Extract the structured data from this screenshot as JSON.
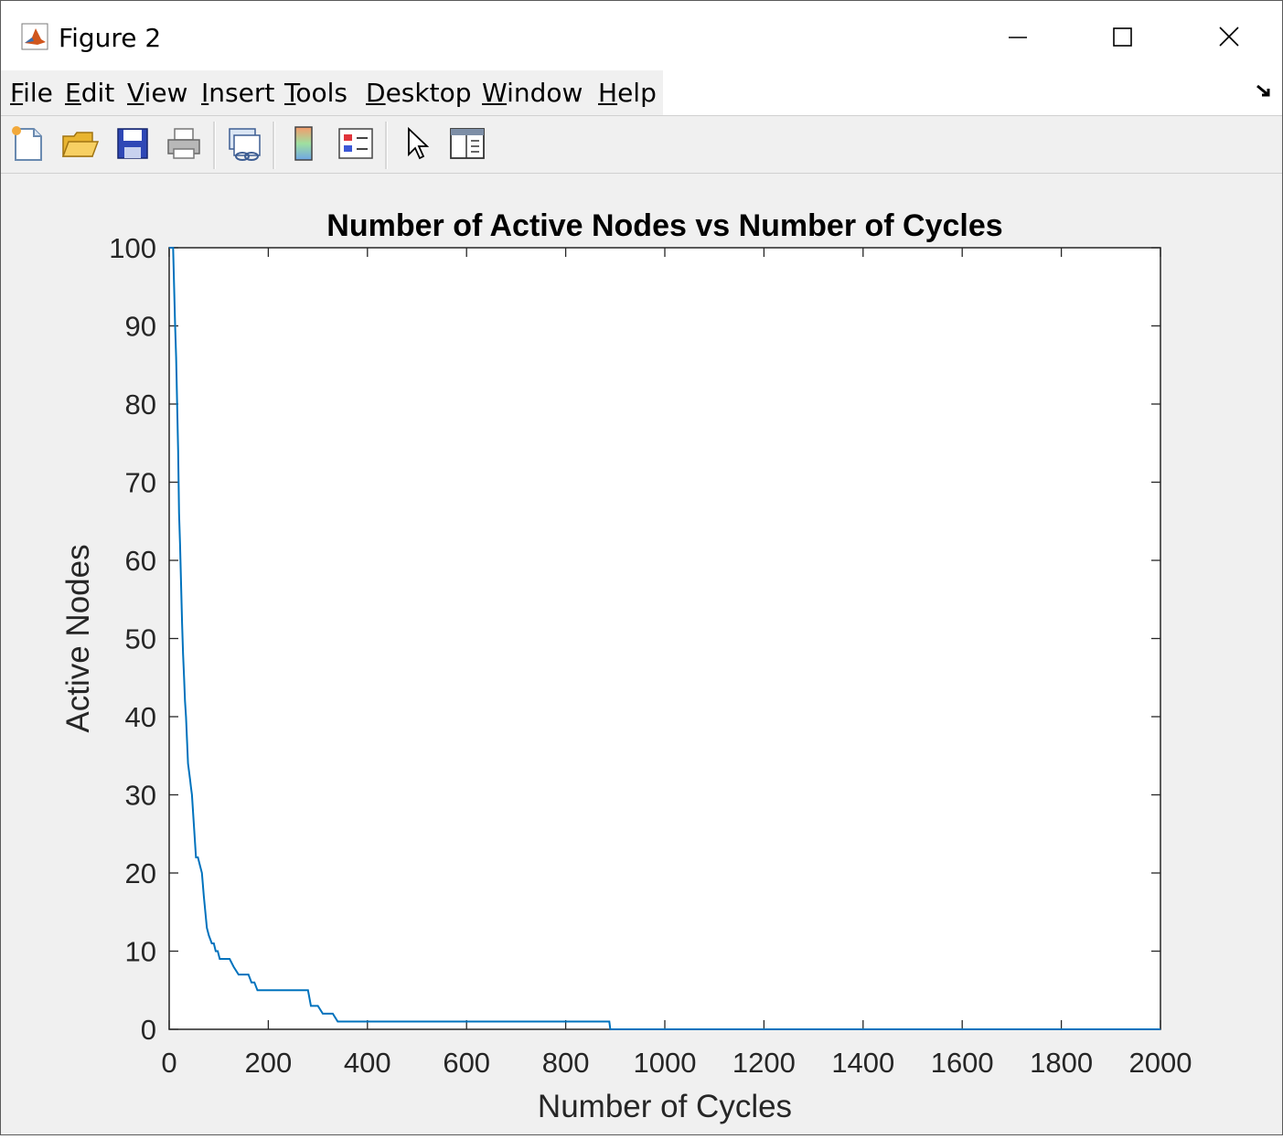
{
  "window": {
    "title": "Figure 2",
    "menu": [
      {
        "label": "File",
        "accel": "F",
        "rest": "ile"
      },
      {
        "label": "Edit",
        "accel": "E",
        "rest": "dit"
      },
      {
        "label": "View",
        "accel": "V",
        "rest": "iew"
      },
      {
        "label": "Insert",
        "accel": "I",
        "rest": "nsert"
      },
      {
        "label": "Tools",
        "accel": "T",
        "rest": "ools"
      },
      {
        "label": "Desktop",
        "accel": "D",
        "rest": "esktop"
      },
      {
        "label": "Window",
        "accel": "W",
        "rest": "indow"
      },
      {
        "label": "Help",
        "accel": "H",
        "rest": "elp"
      }
    ],
    "toolbar_icons": [
      "new-figure-icon",
      "open-file-icon",
      "save-icon",
      "print-icon",
      "link-plot-icon",
      "insert-colorbar-icon",
      "insert-legend-icon",
      "edit-plot-icon",
      "property-inspector-icon"
    ]
  },
  "chart_data": {
    "type": "line",
    "title": "Number of Active Nodes vs Number of Cycles",
    "xlabel": "Number of Cycles",
    "ylabel": "Active Nodes",
    "xlim": [
      0,
      2000
    ],
    "ylim": [
      0,
      100
    ],
    "xticks": [
      0,
      200,
      400,
      600,
      800,
      1000,
      1200,
      1400,
      1600,
      1800,
      2000
    ],
    "yticks": [
      0,
      10,
      20,
      30,
      40,
      50,
      60,
      70,
      80,
      90,
      100
    ],
    "grid": false,
    "legend": "none",
    "color": "#0072bd",
    "x": [
      0,
      8,
      10,
      12,
      14,
      16,
      18,
      20,
      22,
      24,
      26,
      28,
      30,
      32,
      34,
      36,
      38,
      40,
      42,
      44,
      46,
      48,
      50,
      54,
      58,
      62,
      66,
      70,
      76,
      80,
      86,
      90,
      94,
      98,
      102,
      108,
      114,
      122,
      130,
      140,
      150,
      160,
      166,
      172,
      178,
      190,
      196,
      202,
      210,
      220,
      230,
      240,
      260,
      280,
      286,
      300,
      310,
      330,
      340,
      360,
      400,
      500,
      600,
      700,
      800,
      888,
      890,
      900,
      1000,
      1200,
      1400,
      1600,
      1800,
      2000
    ],
    "y": [
      100,
      100,
      95,
      90,
      86,
      80,
      74,
      66,
      62,
      57,
      52,
      48,
      45,
      42,
      40,
      37,
      34,
      33,
      32,
      31,
      30,
      28,
      26,
      22,
      22,
      21,
      20,
      17,
      13,
      12,
      11,
      11,
      10,
      10,
      9,
      9,
      9,
      9,
      8,
      7,
      7,
      7,
      6,
      6,
      5,
      5,
      5,
      5,
      5,
      5,
      5,
      5,
      5,
      5,
      3,
      3,
      2,
      2,
      1,
      1,
      1,
      1,
      1,
      1,
      1,
      1,
      0,
      0,
      0,
      0,
      0,
      0,
      0,
      0
    ]
  }
}
